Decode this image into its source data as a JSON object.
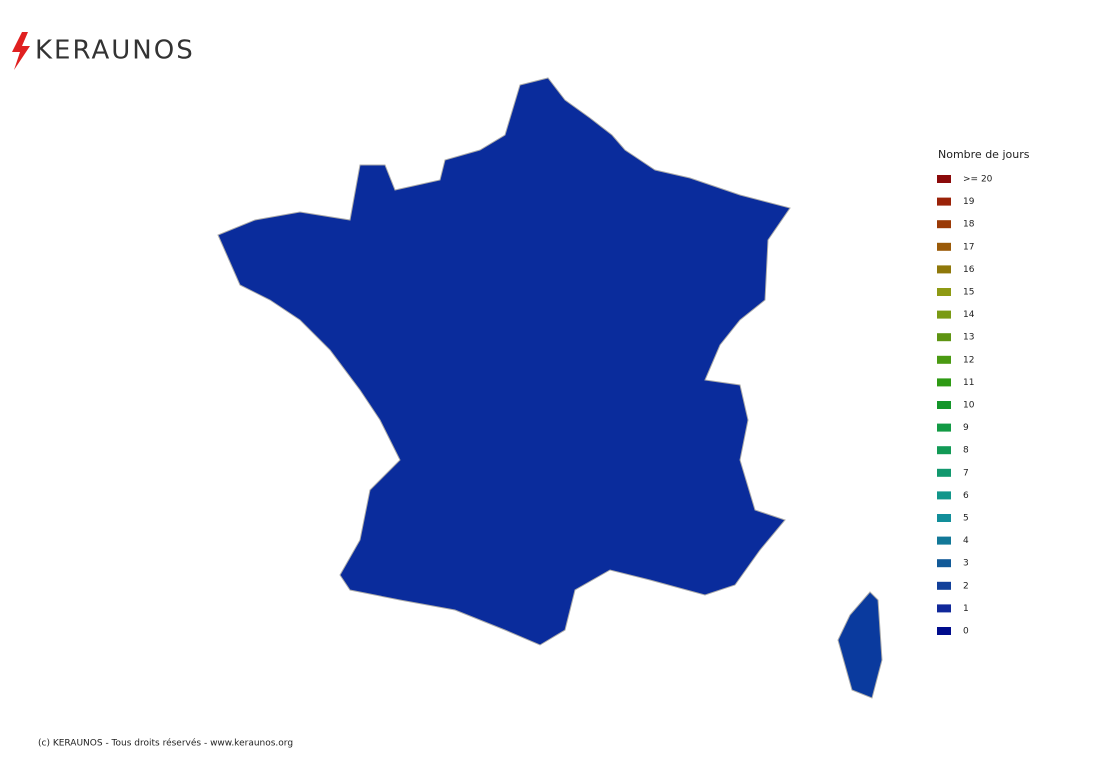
{
  "logo": "KERAUNOS",
  "legend": {
    "title": "Nombre de jours",
    "items": [
      {
        "label": ">= 20",
        "color": "#8b0a0a"
      },
      {
        "label": "19",
        "color": "#9a2208"
      },
      {
        "label": "18",
        "color": "#9a3a06"
      },
      {
        "label": "17",
        "color": "#9a5a08"
      },
      {
        "label": "16",
        "color": "#8f780a"
      },
      {
        "label": "15",
        "color": "#8e9a14"
      },
      {
        "label": "14",
        "color": "#7a9a14"
      },
      {
        "label": "13",
        "color": "#5e9412"
      },
      {
        "label": "12",
        "color": "#4a9a12"
      },
      {
        "label": "11",
        "color": "#2e9a14"
      },
      {
        "label": "10",
        "color": "#14962a"
      },
      {
        "label": "9",
        "color": "#129a44"
      },
      {
        "label": "8",
        "color": "#129a56"
      },
      {
        "label": "7",
        "color": "#12986e"
      },
      {
        "label": "6",
        "color": "#12968a"
      },
      {
        "label": "5",
        "color": "#128e9a"
      },
      {
        "label": "4",
        "color": "#127898"
      },
      {
        "label": "3",
        "color": "#125a98"
      },
      {
        "label": "2",
        "color": "#12409a"
      },
      {
        "label": "1",
        "color": "#10289a"
      },
      {
        "label": "0",
        "color": "#000c8c"
      }
    ]
  },
  "footer": "(c) KERAUNOS - Tous droits réservés - www.keraunos.org"
}
